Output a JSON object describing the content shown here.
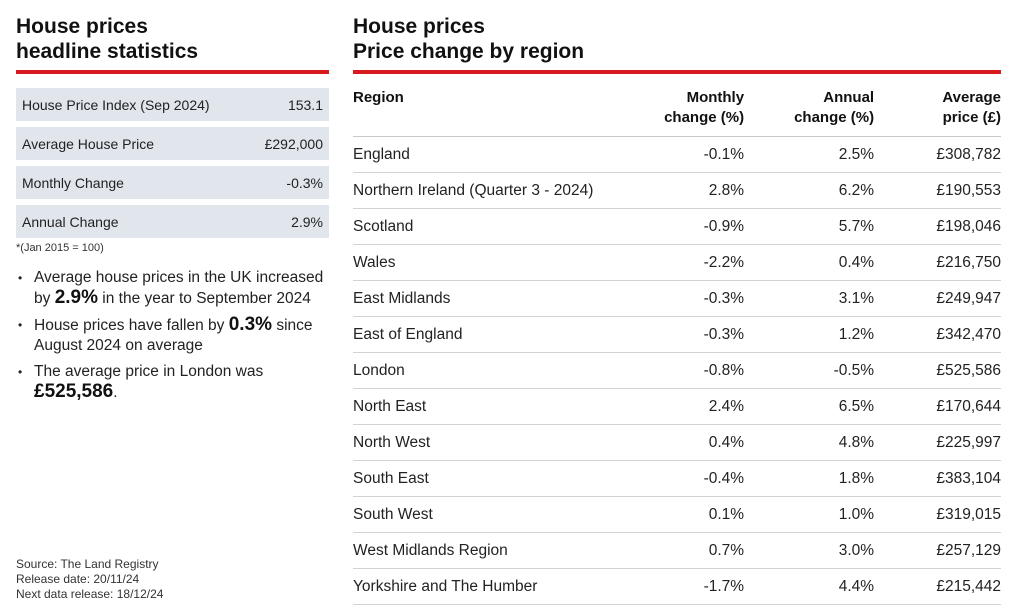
{
  "left": {
    "title_line1": "House prices",
    "title_line2": "headline statistics",
    "stats": [
      {
        "label": "House Price Index (Sep 2024)",
        "value": "153.1"
      },
      {
        "label": "Average House Price",
        "value": "£292,000"
      },
      {
        "label": "Monthly Change",
        "value": "-0.3%"
      },
      {
        "label": "Annual Change",
        "value": "2.9%"
      }
    ],
    "footnote": "*(Jan 2015 = 100)",
    "bullets": [
      {
        "pre": "Average house prices in the UK increased by ",
        "strong": "2.9%",
        "post": " in the year to September 2024"
      },
      {
        "pre": "House prices have fallen by ",
        "strong": "0.3%",
        "post": " since August 2024 on average"
      },
      {
        "pre": "The average price in London was ",
        "strong": "£525,586",
        "post": "."
      }
    ],
    "source": "Source: The Land Registry",
    "release_date": "Release date: 20/11/24",
    "next_release": "Next data release: 18/12/24"
  },
  "right": {
    "title_line1": "House prices",
    "title_line2": "Price change by region",
    "headers": {
      "region": "Region",
      "monthly_1": "Monthly",
      "monthly_2": "change (%)",
      "annual_1": "Annual",
      "annual_2": "change (%)",
      "average_1": "Average",
      "average_2": "price (£)"
    },
    "rows": [
      {
        "region": "England",
        "monthly": "-0.1%",
        "annual": "2.5%",
        "price": "£308,782"
      },
      {
        "region": "Northern Ireland (Quarter 3 - 2024)",
        "monthly": "2.8%",
        "annual": "6.2%",
        "price": "£190,553"
      },
      {
        "region": "Scotland",
        "monthly": "-0.9%",
        "annual": "5.7%",
        "price": "£198,046"
      },
      {
        "region": "Wales",
        "monthly": "-2.2%",
        "annual": "0.4%",
        "price": "£216,750"
      },
      {
        "region": "East Midlands",
        "monthly": "-0.3%",
        "annual": "3.1%",
        "price": "£249,947"
      },
      {
        "region": "East of England",
        "monthly": "-0.3%",
        "annual": "1.2%",
        "price": "£342,470"
      },
      {
        "region": "London",
        "monthly": "-0.8%",
        "annual": "-0.5%",
        "price": "£525,586"
      },
      {
        "region": "North East",
        "monthly": "2.4%",
        "annual": "6.5%",
        "price": "£170,644"
      },
      {
        "region": "North West",
        "monthly": "0.4%",
        "annual": "4.8%",
        "price": "£225,997"
      },
      {
        "region": "South East",
        "monthly": "-0.4%",
        "annual": "1.8%",
        "price": "£383,104"
      },
      {
        "region": "South West",
        "monthly": "0.1%",
        "annual": "1.0%",
        "price": "£319,015"
      },
      {
        "region": "West Midlands Region",
        "monthly": "0.7%",
        "annual": "3.0%",
        "price": "£257,129"
      },
      {
        "region": "Yorkshire and The Humber",
        "monthly": "-1.7%",
        "annual": "4.4%",
        "price": "£215,442"
      }
    ]
  }
}
